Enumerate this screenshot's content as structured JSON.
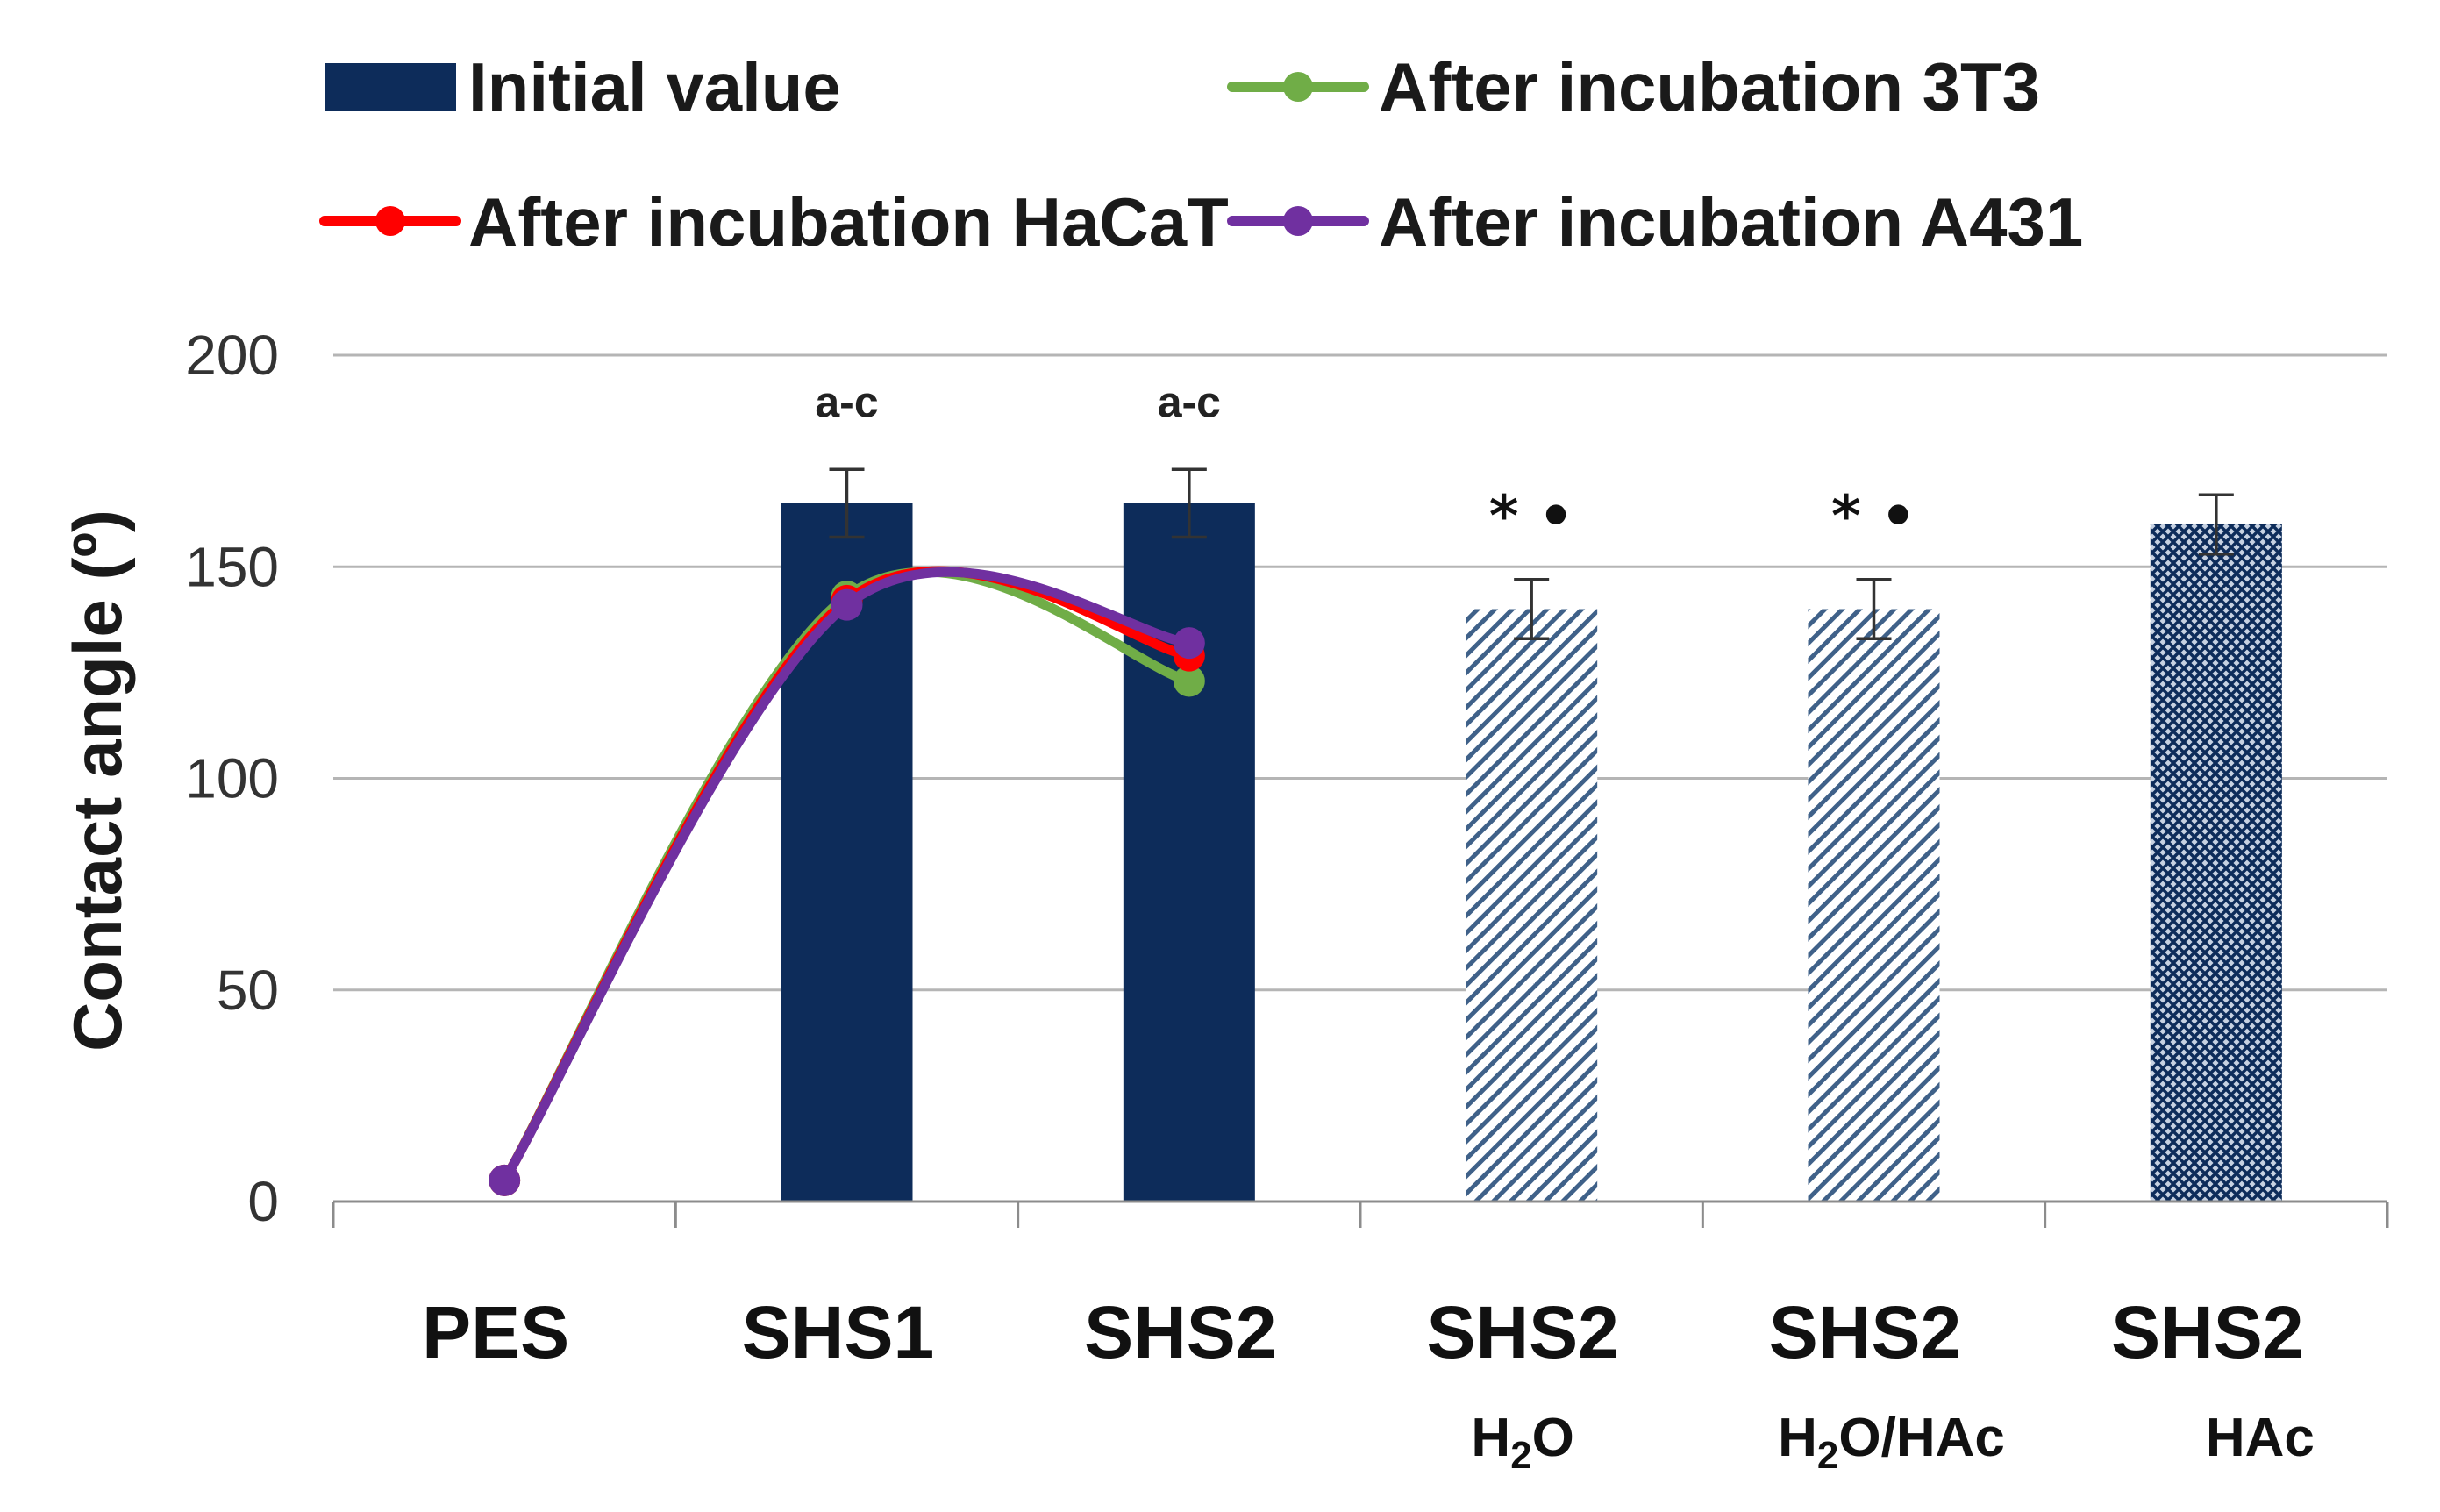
{
  "chart_data": {
    "type": "bar",
    "ylabel": "Contact angle (º)",
    "xlabel": "",
    "ylim": [
      0,
      200
    ],
    "yticks": [
      0,
      50,
      100,
      150,
      200
    ],
    "grid": true,
    "legend_position": "top",
    "categories": [
      {
        "name": "PES",
        "sub": ""
      },
      {
        "name": "SHS1",
        "sub": ""
      },
      {
        "name": "SHS2",
        "sub": ""
      },
      {
        "name": "SHS2",
        "sub": "H2O",
        "sub_base": "H",
        "sub_num": "2",
        "sub_rest": "O"
      },
      {
        "name": "SHS2",
        "sub": "H2O/HAc",
        "sub_base": "H",
        "sub_num": "2",
        "sub_rest": "O/HAc"
      },
      {
        "name": "SHS2",
        "sub": "HAc",
        "sub_base": "HAc",
        "sub_num": "",
        "sub_rest": ""
      }
    ],
    "bars": {
      "name": "Initial value",
      "values": [
        null,
        165,
        165,
        140,
        140,
        160
      ],
      "errors": [
        null,
        8,
        8,
        7,
        7,
        7
      ],
      "styles": [
        "none",
        "solid",
        "solid",
        "hatch",
        "hatch",
        "crosshatch"
      ]
    },
    "annotations": [
      {
        "category": 1,
        "text": "a-c",
        "style": "small"
      },
      {
        "category": 2,
        "text": "a-c",
        "style": "small"
      },
      {
        "category": 3,
        "text": "* •",
        "style": "big"
      },
      {
        "category": 4,
        "text": "* •",
        "style": "big"
      }
    ],
    "series": [
      {
        "name": "After incubation 3T3",
        "color": "#70ad47",
        "points": [
          [
            0,
            5
          ],
          [
            1,
            143
          ],
          [
            2,
            123
          ]
        ]
      },
      {
        "name": "After incubation HaCaT",
        "color": "#ff0000",
        "points": [
          [
            0,
            5
          ],
          [
            1,
            142
          ],
          [
            2,
            129
          ]
        ]
      },
      {
        "name": "After incubation A431",
        "color": "#7030a0",
        "points": [
          [
            0,
            5
          ],
          [
            1,
            141
          ],
          [
            2,
            132
          ]
        ]
      }
    ],
    "colors": {
      "bar": "#0d2c5a",
      "hatch": "#3f6189",
      "grid": "#b5b5b5",
      "axis": "#8c8c8c",
      "error": "#333333"
    }
  }
}
